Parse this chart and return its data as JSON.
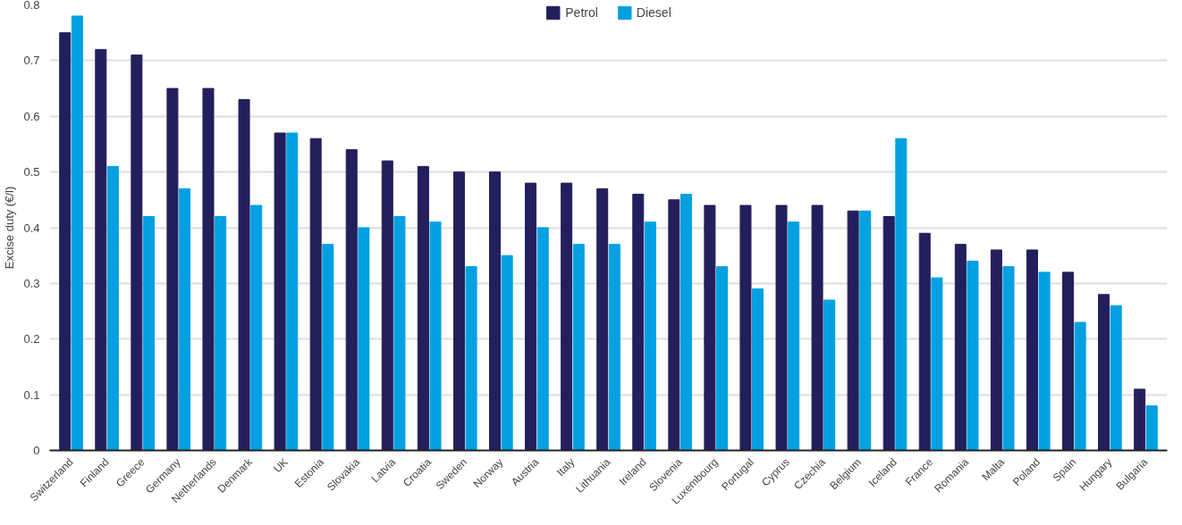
{
  "chart_data": {
    "type": "bar",
    "ylabel": "Excise duty (€/l)",
    "categories": [
      "Switzerland",
      "Finland",
      "Greece",
      "Germany",
      "Netherlands",
      "Denmark",
      "UK",
      "Estonia",
      "Slovakia",
      "Latvia",
      "Croatia",
      "Sweden",
      "Norway",
      "Austria",
      "Italy",
      "Lithuania",
      "Ireland",
      "Slovenia",
      "Luxembourg",
      "Portugal",
      "Cyprus",
      "Czechia",
      "Belgium",
      "Iceland",
      "France",
      "Romania",
      "Malta",
      "Poland",
      "Spain",
      "Hungary",
      "Bulgaria"
    ],
    "series": [
      {
        "name": "Petrol",
        "color": "#231f5c",
        "values": [
          0.75,
          0.72,
          0.71,
          0.65,
          0.65,
          0.63,
          0.57,
          0.56,
          0.54,
          0.52,
          0.51,
          0.5,
          0.5,
          0.48,
          0.48,
          0.47,
          0.46,
          0.45,
          0.44,
          0.44,
          0.44,
          0.44,
          0.43,
          0.42,
          0.39,
          0.37,
          0.36,
          0.36,
          0.32,
          0.28,
          0.11
        ]
      },
      {
        "name": "Diesel",
        "color": "#00a0e1",
        "values": [
          0.78,
          0.51,
          0.42,
          0.47,
          0.42,
          0.44,
          0.57,
          0.37,
          0.4,
          0.42,
          0.41,
          0.33,
          0.35,
          0.4,
          0.37,
          0.37,
          0.41,
          0.46,
          0.33,
          0.29,
          0.41,
          0.27,
          0.43,
          0.56,
          0.31,
          0.34,
          0.33,
          0.32,
          0.23,
          0.26,
          0.08
        ]
      }
    ],
    "ylim": [
      0,
      0.8
    ],
    "yticks": [
      0,
      0.1,
      0.2,
      0.3,
      0.4,
      0.5,
      0.6,
      0.7,
      0.8
    ],
    "grid": "y",
    "legend": "top"
  }
}
